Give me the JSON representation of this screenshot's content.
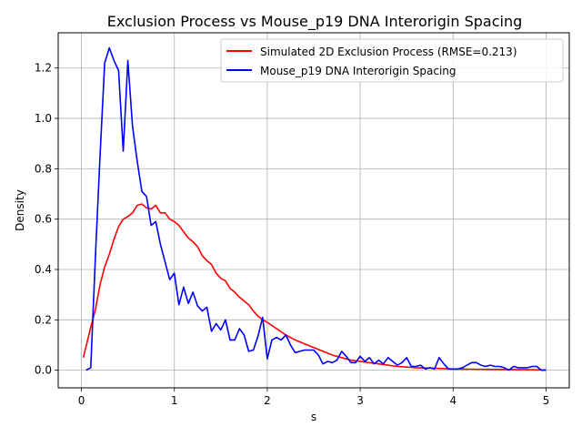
{
  "chart_data": {
    "type": "line",
    "title": "Exclusion Process vs Mouse_p19 DNA Interorigin Spacing",
    "xlabel": "s",
    "ylabel": "Density",
    "xlim": [
      -0.25,
      5.25
    ],
    "ylim": [
      -0.07,
      1.34
    ],
    "xticks": [
      0,
      1,
      2,
      3,
      4,
      5
    ],
    "xtick_labels": [
      "0",
      "1",
      "2",
      "3",
      "4",
      "5"
    ],
    "yticks": [
      0.0,
      0.2,
      0.4,
      0.6,
      0.8,
      1.0,
      1.2
    ],
    "ytick_labels": [
      "0.0",
      "0.2",
      "0.4",
      "0.6",
      "0.8",
      "1.0",
      "1.2"
    ],
    "grid": true,
    "legend_position": "top-right",
    "series": [
      {
        "name": "Simulated 2D Exclusion Process (RMSE=0.213)",
        "color": "#ff0000",
        "x": [
          0.02,
          0.1,
          0.15,
          0.2,
          0.25,
          0.3,
          0.35,
          0.4,
          0.45,
          0.5,
          0.55,
          0.6,
          0.65,
          0.7,
          0.75,
          0.8,
          0.85,
          0.9,
          0.95,
          1.0,
          1.05,
          1.1,
          1.15,
          1.2,
          1.25,
          1.3,
          1.35,
          1.4,
          1.45,
          1.5,
          1.55,
          1.6,
          1.65,
          1.7,
          1.75,
          1.8,
          1.85,
          1.9,
          1.95,
          2.0,
          2.1,
          2.2,
          2.3,
          2.4,
          2.5,
          2.6,
          2.7,
          2.8,
          2.9,
          3.0,
          3.2,
          3.4,
          3.6,
          3.8,
          4.0,
          4.2,
          4.5,
          4.8,
          5.0
        ],
        "y": [
          0.05,
          0.17,
          0.24,
          0.34,
          0.41,
          0.46,
          0.52,
          0.57,
          0.6,
          0.61,
          0.625,
          0.655,
          0.66,
          0.645,
          0.64,
          0.655,
          0.625,
          0.625,
          0.6,
          0.59,
          0.575,
          0.55,
          0.525,
          0.51,
          0.49,
          0.455,
          0.435,
          0.42,
          0.385,
          0.365,
          0.355,
          0.325,
          0.31,
          0.29,
          0.275,
          0.26,
          0.235,
          0.215,
          0.2,
          0.19,
          0.165,
          0.14,
          0.12,
          0.105,
          0.09,
          0.075,
          0.06,
          0.05,
          0.04,
          0.035,
          0.025,
          0.015,
          0.01,
          0.008,
          0.005,
          0.004,
          0.003,
          0.002,
          0.001
        ]
      },
      {
        "name": "Mouse_p19 DNA Interorigin Spacing",
        "color": "#0000ff",
        "x": [
          0.05,
          0.1,
          0.15,
          0.2,
          0.25,
          0.3,
          0.35,
          0.4,
          0.45,
          0.5,
          0.55,
          0.6,
          0.65,
          0.7,
          0.75,
          0.8,
          0.85,
          0.9,
          0.95,
          1.0,
          1.05,
          1.1,
          1.15,
          1.2,
          1.25,
          1.3,
          1.35,
          1.4,
          1.45,
          1.5,
          1.55,
          1.6,
          1.65,
          1.7,
          1.75,
          1.8,
          1.85,
          1.9,
          1.95,
          2.0,
          2.05,
          2.1,
          2.15,
          2.2,
          2.25,
          2.3,
          2.35,
          2.4,
          2.45,
          2.5,
          2.55,
          2.6,
          2.65,
          2.7,
          2.75,
          2.8,
          2.85,
          2.9,
          2.95,
          3.0,
          3.05,
          3.1,
          3.15,
          3.2,
          3.25,
          3.3,
          3.35,
          3.4,
          3.45,
          3.5,
          3.55,
          3.6,
          3.65,
          3.7,
          3.75,
          3.8,
          3.85,
          3.9,
          3.95,
          4.0,
          4.05,
          4.1,
          4.15,
          4.2,
          4.25,
          4.3,
          4.35,
          4.4,
          4.45,
          4.5,
          4.55,
          4.6,
          4.65,
          4.7,
          4.75,
          4.8,
          4.85,
          4.9,
          4.95,
          5.0
        ],
        "y": [
          0.0,
          0.01,
          0.45,
          0.85,
          1.22,
          1.28,
          1.23,
          1.19,
          0.87,
          1.23,
          0.97,
          0.83,
          0.71,
          0.69,
          0.575,
          0.59,
          0.5,
          0.43,
          0.36,
          0.385,
          0.26,
          0.33,
          0.265,
          0.31,
          0.255,
          0.235,
          0.25,
          0.155,
          0.185,
          0.16,
          0.2,
          0.12,
          0.12,
          0.165,
          0.14,
          0.075,
          0.08,
          0.135,
          0.21,
          0.045,
          0.12,
          0.13,
          0.12,
          0.14,
          0.1,
          0.07,
          0.075,
          0.08,
          0.08,
          0.08,
          0.06,
          0.025,
          0.035,
          0.03,
          0.04,
          0.075,
          0.055,
          0.03,
          0.03,
          0.055,
          0.035,
          0.05,
          0.025,
          0.04,
          0.025,
          0.05,
          0.035,
          0.02,
          0.03,
          0.05,
          0.015,
          0.015,
          0.02,
          0.005,
          0.01,
          0.005,
          0.05,
          0.025,
          0.005,
          0.005,
          0.005,
          0.01,
          0.02,
          0.03,
          0.03,
          0.02,
          0.015,
          0.02,
          0.015,
          0.015,
          0.01,
          0.0,
          0.015,
          0.01,
          0.01,
          0.01,
          0.015,
          0.015,
          0.0,
          0.0
        ]
      }
    ]
  }
}
